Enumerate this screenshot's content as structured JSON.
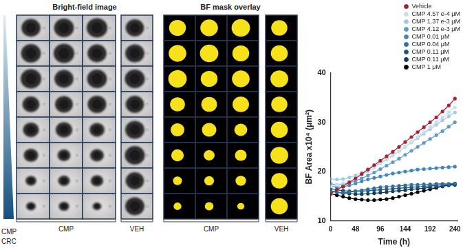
{
  "figure": {
    "panels": [
      {
        "title": "Bright-field image",
        "groups": [
          "CMP",
          "VEH"
        ]
      },
      {
        "title": "BF mask overlay",
        "groups": [
          "CMP",
          "VEH"
        ]
      }
    ],
    "gradient_label": [
      "CMP",
      "CRC"
    ]
  },
  "chart_data": {
    "type": "line",
    "x_label": "Time (h)",
    "y_label": "BF Area x10⁴ (μm²)",
    "x": [
      0,
      12,
      24,
      36,
      48,
      60,
      72,
      84,
      96,
      108,
      120,
      132,
      144,
      156,
      168,
      180,
      192,
      204,
      216,
      228,
      240
    ],
    "xlim": [
      0,
      245
    ],
    "xticks": [
      0,
      48,
      96,
      144,
      192,
      240
    ],
    "ylim": [
      10,
      40
    ],
    "yticks": [
      10,
      20,
      30,
      40
    ],
    "grid": false,
    "legend": "upper right",
    "marker": "circle",
    "series": [
      {
        "name": "Vehicle",
        "color": "#a8232e",
        "values": [
          15.5,
          16.3,
          17.0,
          17.8,
          18.6,
          19.5,
          20.4,
          21.3,
          22.2,
          23.1,
          24.0,
          25.0,
          26.0,
          27.0,
          28.0,
          29.0,
          30.0,
          31.0,
          32.2,
          33.4,
          34.8
        ]
      },
      {
        "name": "CMP 4.57 e-4 μM",
        "color": "#c9dfee",
        "values": [
          17.0,
          17.3,
          17.6,
          18.0,
          18.6,
          19.3,
          20.0,
          20.8,
          21.6,
          22.4,
          23.2,
          24.1,
          25.0,
          26.0,
          27.0,
          28.0,
          29.0,
          30.0,
          31.0,
          32.0,
          33.0
        ]
      },
      {
        "name": "CMP 1.37 e-3 μM",
        "color": "#a3cae4",
        "values": [
          18.5,
          18.4,
          18.5,
          18.8,
          19.2,
          19.8,
          20.4,
          21.1,
          21.8,
          22.5,
          23.3,
          24.1,
          25.0,
          25.9,
          26.8,
          27.7,
          28.6,
          29.5,
          30.4,
          31.2,
          32.0
        ]
      },
      {
        "name": "CMP 4.12 e-3 μM",
        "color": "#5b9bd0",
        "values": [
          17.5,
          17.3,
          17.4,
          17.7,
          18.1,
          18.6,
          19.2,
          19.8,
          20.5,
          21.2,
          21.9,
          22.6,
          23.4,
          24.2,
          25.0,
          25.8,
          26.6,
          27.4,
          28.2,
          29.1,
          30.0
        ]
      },
      {
        "name": "CMP 0.01 μM",
        "color": "#3f86bf",
        "values": [
          17.0,
          16.8,
          16.9,
          17.2,
          17.6,
          18.0,
          18.4,
          18.7,
          19.0,
          19.3,
          19.6,
          19.8,
          20.0,
          20.2,
          20.4,
          20.5,
          20.6,
          20.7,
          20.8,
          20.9,
          21.0
        ]
      },
      {
        "name": "CMP 0.04 μM",
        "color": "#2f6f9f",
        "values": [
          16.0,
          15.8,
          15.7,
          15.8,
          16.0,
          16.2,
          16.4,
          16.6,
          16.8,
          16.9,
          17.0,
          17.1,
          17.2,
          17.3,
          17.3,
          17.4,
          17.4,
          17.5,
          17.5,
          17.5,
          17.6
        ]
      },
      {
        "name": "CMP 0.11 μM",
        "color": "#1f557a",
        "values": [
          16.5,
          16.3,
          16.1,
          16.0,
          16.0,
          16.0,
          16.1,
          16.2,
          16.3,
          16.4,
          16.5,
          16.6,
          16.7,
          16.8,
          16.9,
          17.0,
          17.1,
          17.2,
          17.3,
          17.4,
          17.5
        ]
      },
      {
        "name": "CMP 0.11 μM",
        "color": "#173a55",
        "values": [
          16.0,
          15.8,
          15.6,
          15.5,
          15.4,
          15.4,
          15.5,
          15.6,
          15.7,
          15.8,
          16.0,
          16.1,
          16.2,
          16.4,
          16.5,
          16.6,
          16.8,
          16.9,
          17.0,
          17.2,
          17.3
        ]
      },
      {
        "name": "CMP 1 μM",
        "color": "#000000",
        "values": [
          15.5,
          15.2,
          14.9,
          14.6,
          14.4,
          14.3,
          14.2,
          14.2,
          14.3,
          14.4,
          14.6,
          14.9,
          15.2,
          15.5,
          15.8,
          16.1,
          16.4,
          16.7,
          17.0,
          17.3,
          17.5
        ]
      }
    ]
  }
}
